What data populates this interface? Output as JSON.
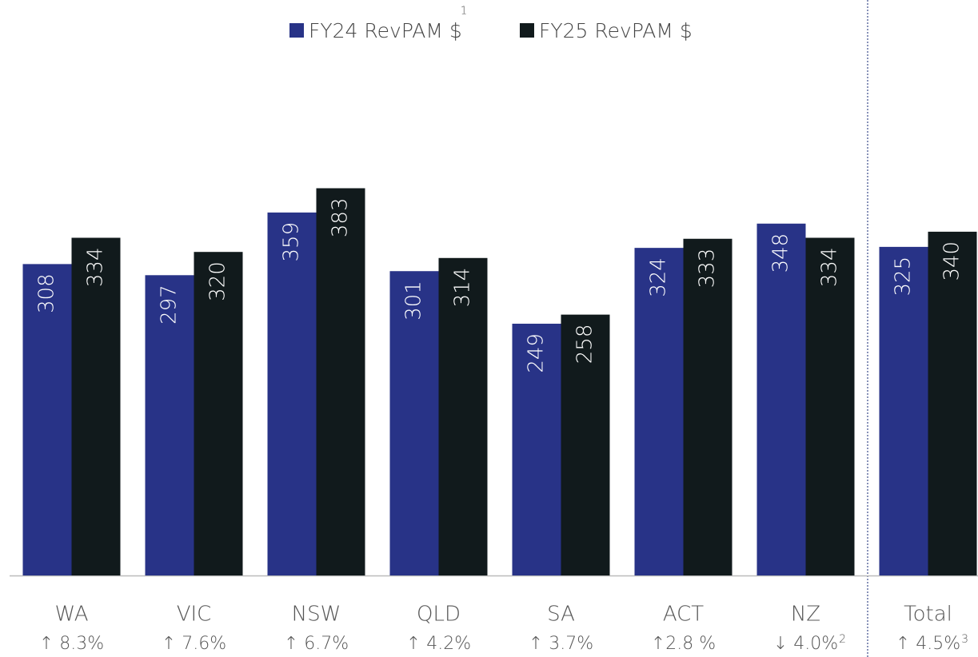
{
  "chart_data": {
    "type": "bar",
    "categories": [
      "WA",
      "VIC",
      "NSW",
      "QLD",
      "SA",
      "ACT",
      "NZ",
      "Total"
    ],
    "series": [
      {
        "name": "FY24 RevPAM $",
        "note": "1",
        "color": "#283387",
        "values": [
          308,
          297,
          359,
          301,
          249,
          324,
          348,
          325
        ]
      },
      {
        "name": "FY25 RevPAM $",
        "color": "#111a1c",
        "values": [
          334,
          320,
          383,
          314,
          258,
          333,
          334,
          340
        ]
      }
    ],
    "changes": [
      "↑ 8.3%",
      "↑ 7.6%",
      "↑ 6.7%",
      "↑ 4.2%",
      "↑ 3.7%",
      "↑2.8 %",
      "↓ 4.0%",
      "↑ 4.5%"
    ],
    "change_notes": [
      null,
      null,
      null,
      null,
      null,
      null,
      "2",
      "3"
    ],
    "ylim": [
      0,
      400
    ]
  }
}
